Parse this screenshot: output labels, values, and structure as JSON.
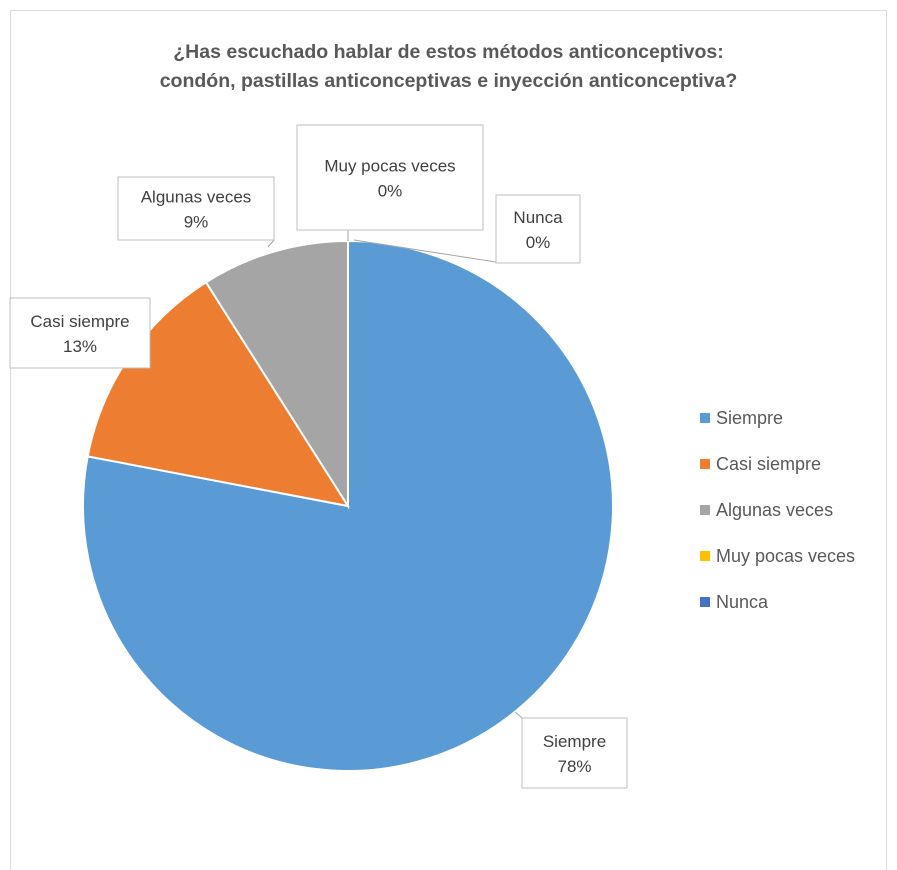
{
  "chart_data": {
    "type": "pie",
    "title_line1": "¿Has escuchado hablar de estos métodos anticonceptivos:",
    "title_line2": "condón, pastillas anticonceptivas e  inyección anticonceptiva?",
    "categories": [
      "Siempre",
      "Casi siempre",
      "Algunas veces",
      "Muy pocas veces",
      "Nunca"
    ],
    "values": [
      78,
      13,
      9,
      0,
      0
    ],
    "value_labels": [
      "78%",
      "13%",
      "9%",
      "0%",
      "0%"
    ],
    "colors": [
      "#5b9bd5",
      "#ed7d31",
      "#a5a5a5",
      "#ffc000",
      "#4472c4"
    ],
    "start_angle_deg": 0,
    "direction": "clockwise",
    "legend_position": "right"
  }
}
